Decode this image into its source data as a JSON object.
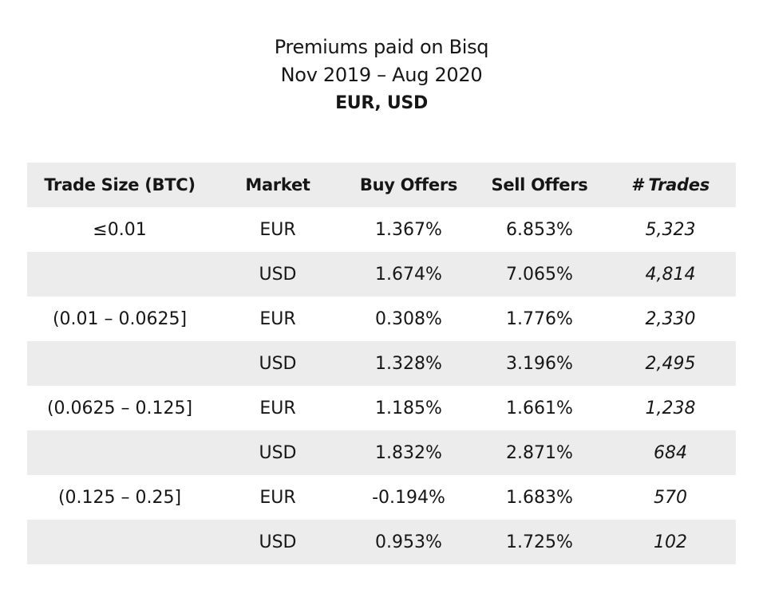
{
  "title": {
    "line1": "Premiums paid on Bisq",
    "line2": "Nov 2019 – Aug 2020",
    "line3": "EUR, USD"
  },
  "table": {
    "headers": {
      "trade_size": "Trade Size (BTC)",
      "market": "Market",
      "buy_offers": "Buy Offers",
      "sell_offers": "Sell Offers",
      "trades": "# Trades"
    },
    "rows": [
      {
        "trade_size": "≤0.01",
        "market": "EUR",
        "buy_offers": "1.367%",
        "sell_offers": "6.853%",
        "trades": "5,323"
      },
      {
        "trade_size": "",
        "market": "USD",
        "buy_offers": "1.674%",
        "sell_offers": "7.065%",
        "trades": "4,814"
      },
      {
        "trade_size": "(0.01 – 0.0625]",
        "market": "EUR",
        "buy_offers": "0.308%",
        "sell_offers": "1.776%",
        "trades": "2,330"
      },
      {
        "trade_size": "",
        "market": "USD",
        "buy_offers": "1.328%",
        "sell_offers": "3.196%",
        "trades": "2,495"
      },
      {
        "trade_size": "(0.0625 – 0.125]",
        "market": "EUR",
        "buy_offers": "1.185%",
        "sell_offers": "1.661%",
        "trades": "1,238"
      },
      {
        "trade_size": "",
        "market": "USD",
        "buy_offers": "1.832%",
        "sell_offers": "2.871%",
        "trades": "684"
      },
      {
        "trade_size": "(0.125 – 0.25]",
        "market": "EUR",
        "buy_offers": "-0.194%",
        "sell_offers": "1.683%",
        "trades": "570"
      },
      {
        "trade_size": "",
        "market": "USD",
        "buy_offers": "0.953%",
        "sell_offers": "1.725%",
        "trades": "102"
      }
    ]
  },
  "colors": {
    "shaded_row": "#ececec",
    "text": "#161616",
    "background": "#ffffff"
  }
}
